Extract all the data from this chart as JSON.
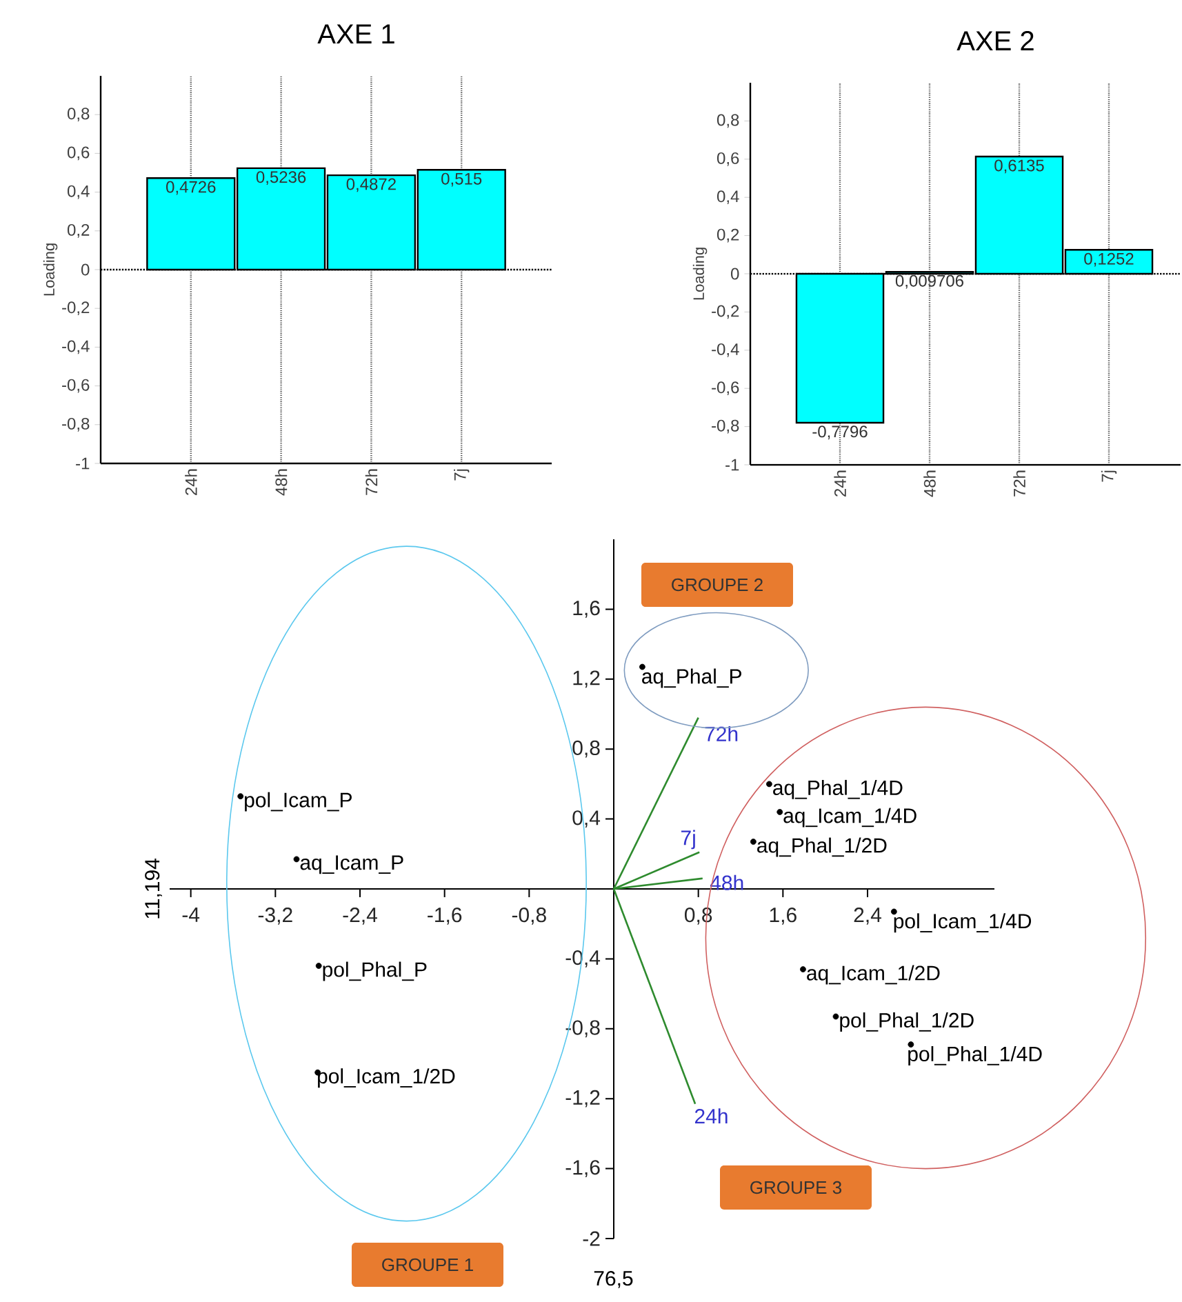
{
  "chart_data": [
    {
      "type": "bar",
      "title": "AXE 1",
      "ylabel": "Loading",
      "categories": [
        "24h",
        "48h",
        "72h",
        "7j"
      ],
      "values": [
        0.4726,
        0.5236,
        0.4872,
        0.515
      ],
      "value_labels": [
        "0,4726",
        "0,5236",
        "0,4872",
        "0,515"
      ],
      "color": "#00ffff",
      "ylim": [
        -1,
        1
      ],
      "yticks": [
        -1,
        {
          "value": -0.8,
          "label": "-0,8"
        },
        {
          "value": -0.6,
          "label": "-0,6"
        },
        {
          "value": -0.4,
          "label": "-0,4"
        },
        {
          "value": -0.2,
          "label": "-0,2"
        },
        0,
        {
          "value": 0.2,
          "label": "0,2"
        },
        {
          "value": 0.4,
          "label": "0,4"
        },
        {
          "value": 0.6,
          "label": "0,6"
        },
        {
          "value": 0.8,
          "label": "0,8"
        }
      ],
      "grid": "x",
      "ref_lines": [
        {
          "axis": "y",
          "value": 0,
          "line_style": "dotted"
        }
      ]
    },
    {
      "type": "bar",
      "title": "AXE 2",
      "ylabel": "Loading",
      "categories": [
        "24h",
        "48h",
        "72h",
        "7j"
      ],
      "values": [
        -0.7796,
        0.009706,
        0.6135,
        0.1252
      ],
      "value_labels": [
        "-0,7796",
        "0,009706",
        "0,6135",
        "0,1252"
      ],
      "color": "#00ffff",
      "ylim": [
        -1,
        1
      ],
      "yticks": [
        -1,
        {
          "value": -0.8,
          "label": "-0,8"
        },
        {
          "value": -0.6,
          "label": "-0,6"
        },
        {
          "value": -0.4,
          "label": "-0,4"
        },
        {
          "value": -0.2,
          "label": "-0,2"
        },
        0,
        {
          "value": 0.2,
          "label": "0,2"
        },
        {
          "value": 0.4,
          "label": "0,4"
        },
        {
          "value": 0.6,
          "label": "0,6"
        },
        {
          "value": 0.8,
          "label": "0,8"
        }
      ],
      "grid": "x",
      "ref_lines": [
        {
          "axis": "y",
          "value": 0,
          "line_style": "dotted"
        }
      ]
    },
    {
      "type": "scatter",
      "xlabel": "76,5",
      "ylabel": "11,194",
      "marker": "circle",
      "xlim": [
        -4.2,
        3.6
      ],
      "ylim": [
        -2,
        2
      ],
      "xticks": [
        -4,
        {
          "value": -3.2,
          "label": "-3,2"
        },
        {
          "value": -2.4,
          "label": "-2,4"
        },
        {
          "value": -1.6,
          "label": "-1,6"
        },
        {
          "value": -0.8,
          "label": "-0,8"
        },
        {
          "value": 0.8,
          "label": "0,8"
        },
        {
          "value": 1.6,
          "label": "1,6"
        },
        {
          "value": 2.4,
          "label": "2,4"
        }
      ],
      "yticks": [
        -2,
        {
          "value": -1.6,
          "label": "-1,6"
        },
        {
          "value": -1.2,
          "label": "-1,2"
        },
        {
          "value": -0.8,
          "label": "-0,8"
        },
        {
          "value": -0.4,
          "label": "-0,4"
        },
        {
          "value": 0.4,
          "label": "0,4"
        },
        {
          "value": 0.8,
          "label": "0,8"
        },
        {
          "value": 1.2,
          "label": "1,2"
        },
        {
          "value": 1.6,
          "label": "1,6"
        }
      ],
      "series": [
        {
          "name": "pol_Icam_P",
          "color": "#000000",
          "x": [
            -3.53
          ],
          "values": [
            0.53
          ]
        },
        {
          "name": "aq_Icam_P",
          "color": "#000000",
          "x": [
            -3.0
          ],
          "values": [
            0.17
          ]
        },
        {
          "name": "pol_Phal_P",
          "color": "#000000",
          "x": [
            -2.79
          ],
          "values": [
            -0.44
          ]
        },
        {
          "name": "pol_Icam_1/2D",
          "color": "#000000",
          "x": [
            -2.8
          ],
          "values": [
            -1.05
          ]
        },
        {
          "name": "aq_Phal_P",
          "color": "#000000",
          "x": [
            0.27
          ],
          "values": [
            1.27
          ]
        },
        {
          "name": "aq_Phal_1/4D",
          "color": "#000000",
          "x": [
            1.47
          ],
          "values": [
            0.6
          ]
        },
        {
          "name": "aq_Icam_1/4D",
          "color": "#000000",
          "x": [
            1.57
          ],
          "values": [
            0.44
          ]
        },
        {
          "name": "aq_Phal_1/2D",
          "color": "#000000",
          "x": [
            1.32
          ],
          "values": [
            0.27
          ]
        },
        {
          "name": "pol_Icam_1/4D",
          "color": "#000000",
          "x": [
            2.65
          ],
          "values": [
            -0.13
          ]
        },
        {
          "name": "aq_Icam_1/2D",
          "color": "#000000",
          "x": [
            1.79
          ],
          "values": [
            -0.46
          ]
        },
        {
          "name": "pol_Phal_1/2D",
          "color": "#000000",
          "x": [
            2.1
          ],
          "values": [
            -0.73
          ]
        },
        {
          "name": "pol_Phal_1/4D",
          "color": "#000000",
          "x": [
            2.81
          ],
          "values": [
            -0.89
          ]
        },
        {
          "name": "72h",
          "type": "line",
          "marker": "none",
          "color": "#2e8b2e",
          "x": [
            0,
            0.8
          ],
          "values": [
            0,
            0.98
          ]
        },
        {
          "name": "7j",
          "type": "line",
          "marker": "none",
          "color": "#2e8b2e",
          "x": [
            0,
            0.81
          ],
          "values": [
            0,
            0.21
          ]
        },
        {
          "name": "48h",
          "type": "line",
          "marker": "none",
          "color": "#2e8b2e",
          "x": [
            0,
            0.84
          ],
          "values": [
            0,
            0.06
          ]
        },
        {
          "name": "24h",
          "type": "line",
          "marker": "none",
          "color": "#2e8b2e",
          "x": [
            0,
            0.77
          ],
          "values": [
            0,
            -1.23
          ]
        }
      ],
      "annotations": [
        "GROUPE 1",
        "GROUPE 2",
        "GROUPE 3"
      ]
    }
  ]
}
